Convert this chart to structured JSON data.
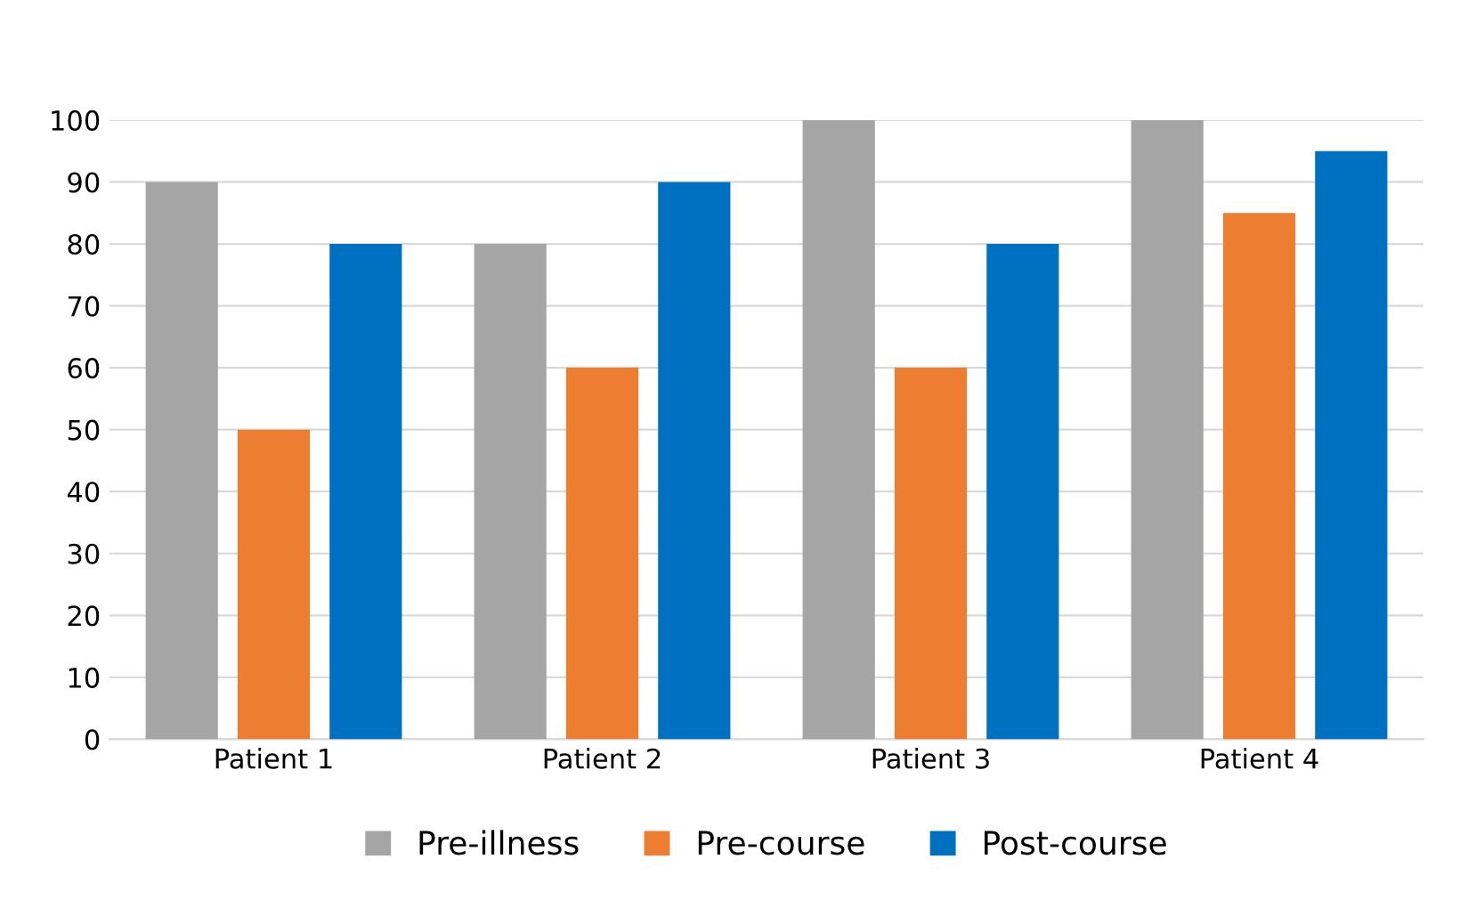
{
  "chart_data": {
    "type": "bar",
    "categories": [
      "Patient 1",
      "Patient 2",
      "Patient 3",
      "Patient 4"
    ],
    "series": [
      {
        "name": "Pre-illness",
        "color": "#a5a5a5",
        "values": [
          90,
          80,
          100,
          100
        ]
      },
      {
        "name": "Pre-course",
        "color": "#ed7d31",
        "values": [
          50,
          60,
          60,
          85
        ]
      },
      {
        "name": "Post-course",
        "color": "#0070c0",
        "values": [
          80,
          90,
          80,
          95
        ]
      }
    ],
    "ylim": [
      0,
      100
    ],
    "yticks": [
      0,
      10,
      20,
      30,
      40,
      50,
      60,
      70,
      80,
      90,
      100
    ],
    "grid": "y",
    "legend": "bottom"
  }
}
